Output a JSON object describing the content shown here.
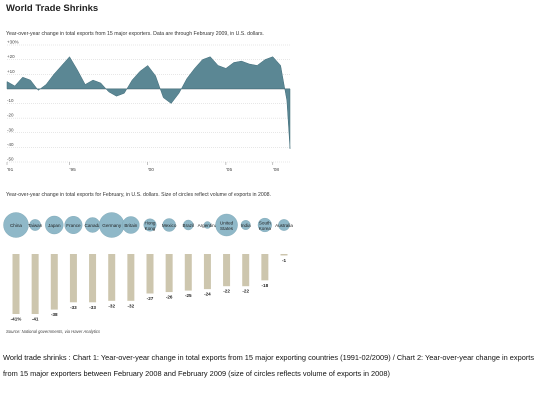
{
  "page": {
    "title": "World Trade Shrinks",
    "chart1_subtitle": "Year-over-year change in total exports from 15 major exporters. Data are through February 2009, in U.S. dollars.",
    "chart2_subtitle": "Year-over-year change in total exports for February, in U.S. dollars. Size of circles reflect volume of exports in 2008.",
    "source": "Source: National governments, via Haver Analytics",
    "caption": "World trade shrinks : Chart 1: Year-over-year change in total exports from 15 major exporting countries (1991-02/2009) / Chart 2: Year-over-year change in exports from 15 major exporters between February 2008 and February 2009 (size of circles reflects volume of exports in 2008)"
  },
  "colors": {
    "area": "#5b8794",
    "bubble": "#8fb8c8",
    "bar": "#cdc6ae",
    "grid": "#cfcfcf"
  },
  "chart_data": [
    {
      "type": "area",
      "ylim": [
        -50,
        30
      ],
      "y_ticks": [
        30,
        20,
        10,
        0,
        -10,
        -20,
        -30,
        -40,
        -50
      ],
      "y_tick_labels": [
        "+30%",
        "+20",
        "+10",
        "0",
        "-10",
        "-20",
        "-30",
        "-40",
        "-50"
      ],
      "x_tick_labels": [
        "'91",
        "'95",
        "'00",
        "'05",
        "'08"
      ],
      "x_tick_years": [
        1991,
        1995,
        2000,
        2005,
        2008
      ],
      "x": [
        1991.0,
        1991.5,
        1992.0,
        1992.5,
        1993.0,
        1993.5,
        1994.0,
        1994.5,
        1995.0,
        1995.5,
        1996.0,
        1996.5,
        1997.0,
        1997.5,
        1998.0,
        1998.5,
        1999.0,
        1999.5,
        2000.0,
        2000.5,
        2001.0,
        2001.5,
        2002.0,
        2002.5,
        2003.0,
        2003.5,
        2004.0,
        2004.5,
        2005.0,
        2005.5,
        2006.0,
        2006.5,
        2007.0,
        2007.5,
        2008.0,
        2008.5,
        2008.9,
        2009.1
      ],
      "y": [
        5,
        2,
        8,
        6,
        -1,
        3,
        10,
        16,
        22,
        13,
        3,
        6,
        4,
        -2,
        -5,
        -3,
        6,
        12,
        16,
        9,
        -6,
        -10,
        -3,
        7,
        14,
        20,
        22,
        16,
        14,
        18,
        19,
        17,
        16,
        20,
        22,
        16,
        -8,
        -41
      ]
    },
    {
      "type": "bar",
      "unit": "%",
      "categories": [
        "China",
        "Taiwan",
        "Japan",
        "France",
        "Canada",
        "Germany",
        "Britain",
        "Hong Kong",
        "Mexico",
        "Brazil",
        "Argentina",
        "United States",
        "India",
        "South Korea",
        "Australia"
      ],
      "values": [
        -41,
        -41,
        -38,
        -33,
        -33,
        -32,
        -32,
        -27,
        -26,
        -25,
        -24,
        -22,
        -22,
        -18,
        -1
      ],
      "value_labels": [
        "-41%",
        "-41",
        "-38",
        "-33",
        "-33",
        "-32",
        "-32",
        "-27",
        "-26",
        "-25",
        "-24",
        "-22",
        "-22",
        "-18",
        "-1"
      ],
      "bubble_sizes": [
        1.0,
        0.45,
        0.72,
        0.7,
        0.6,
        1.0,
        0.68,
        0.5,
        0.52,
        0.4,
        0.25,
        0.88,
        0.38,
        0.55,
        0.45
      ]
    }
  ]
}
